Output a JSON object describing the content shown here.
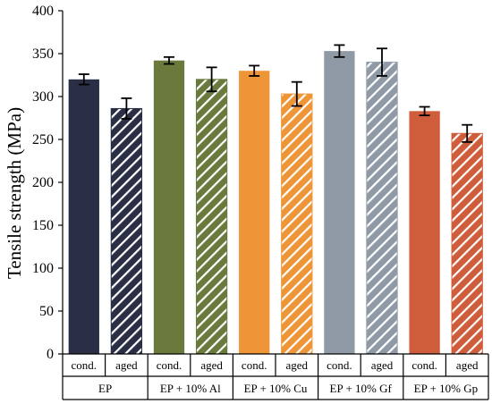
{
  "chart_data": {
    "type": "bar",
    "xlabel": "",
    "ylabel": "Tensile strength (MPa)",
    "ylim": [
      0,
      400
    ],
    "yticks": [
      0,
      50,
      100,
      150,
      200,
      250,
      300,
      350,
      400
    ],
    "grid": false,
    "legend": "none",
    "condition_labels": [
      "cond.",
      "aged"
    ],
    "groups": [
      {
        "name": "EP",
        "color": "#2b2f45",
        "values": [
          320,
          286
        ],
        "errors": [
          6,
          12
        ]
      },
      {
        "name": "EP + 10% Al",
        "color": "#6a7a3c",
        "values": [
          342,
          320
        ],
        "errors": [
          4,
          14
        ]
      },
      {
        "name": "EP + 10% Cu",
        "color": "#ee9537",
        "values": [
          330,
          303
        ],
        "errors": [
          6,
          14
        ]
      },
      {
        "name": "EP + 10% Gf",
        "color": "#8f9aa6",
        "values": [
          353,
          340
        ],
        "errors": [
          7,
          16
        ]
      },
      {
        "name": "EP + 10% Gp",
        "color": "#cf5c3a",
        "values": [
          283,
          257
        ],
        "errors": [
          5,
          10
        ]
      }
    ]
  }
}
